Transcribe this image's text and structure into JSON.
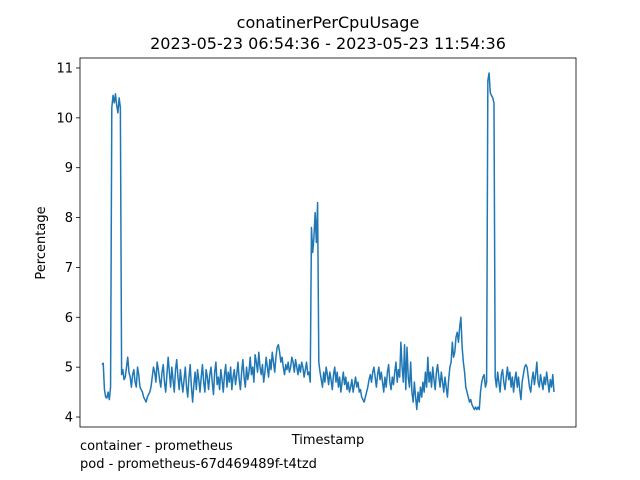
{
  "chart_data": {
    "type": "line",
    "title": "conatinerPerCpuUsage",
    "subtitle": "2023-05-23 06:54:36 - 2023-05-23 11:54:36",
    "xlabel": "Timestamp",
    "ylabel": "Percentage",
    "ylim": [
      3.8,
      11.2
    ],
    "yticks": [
      4,
      5,
      6,
      7,
      8,
      9,
      10,
      11
    ],
    "grid": false,
    "x_tick_labels": "none",
    "series": [
      {
        "color": "#1f77b4",
        "values": [
          5.05,
          5.08,
          4.55,
          4.4,
          4.38,
          4.5,
          4.35,
          4.6,
          10.2,
          10.45,
          10.3,
          10.48,
          10.25,
          10.1,
          10.4,
          10.2,
          4.85,
          4.95,
          4.75,
          4.8,
          5.0,
          5.2,
          4.9,
          4.8,
          4.6,
          4.85,
          4.95,
          4.7,
          4.6,
          5.0,
          4.85,
          4.6,
          4.55,
          4.5,
          4.4,
          4.35,
          4.3,
          4.4,
          4.45,
          4.5,
          4.6,
          4.8,
          5.0,
          4.9,
          4.7,
          5.1,
          4.95,
          4.75,
          4.6,
          4.9,
          5.05,
          4.7,
          4.5,
          4.85,
          5.2,
          4.9,
          4.6,
          5.0,
          4.75,
          4.5,
          4.95,
          5.15,
          4.8,
          4.55,
          4.95,
          4.7,
          4.5,
          4.75,
          5.0,
          4.6,
          4.4,
          4.8,
          5.05,
          4.6,
          4.3,
          4.65,
          4.9,
          4.55,
          4.95,
          4.75,
          4.5,
          4.8,
          5.05,
          4.7,
          4.5,
          4.95,
          4.8,
          4.55,
          4.85,
          5.0,
          4.7,
          4.45,
          4.9,
          5.1,
          4.65,
          4.8,
          4.55,
          4.95,
          4.75,
          4.5,
          4.85,
          5.05,
          4.6,
          4.9,
          4.7,
          5.0,
          4.55,
          4.8,
          4.95,
          4.65,
          4.85,
          5.1,
          4.75,
          4.55,
          4.9,
          5.15,
          4.8,
          4.6,
          5.0,
          4.75,
          4.9,
          5.2,
          4.85,
          5.0,
          4.7,
          5.25,
          5.1,
          4.9,
          5.3,
          5.0,
          4.85,
          5.05,
          4.7,
          4.9,
          5.2,
          5.0,
          4.8,
          5.15,
          4.95,
          5.3,
          5.1,
          4.9,
          5.2,
          5.4,
          5.45,
          5.3,
          5.1,
          5.2,
          5.0,
          4.85,
          5.05,
          4.95,
          5.1,
          4.9,
          5.0,
          5.2,
          5.1,
          4.9,
          5.15,
          5.0,
          4.85,
          5.05,
          4.9,
          5.1,
          5.0,
          4.8,
          4.95,
          5.1,
          4.85,
          4.9,
          4.7,
          7.8,
          7.3,
          7.6,
          8.1,
          7.5,
          8.3,
          5.1,
          4.9,
          4.75,
          4.6,
          4.9,
          4.7,
          5.0,
          4.85,
          4.65,
          4.9,
          4.75,
          4.55,
          4.85,
          5.0,
          4.7,
          4.9,
          4.6,
          4.8,
          4.5,
          4.7,
          4.9,
          4.65,
          4.8,
          4.55,
          4.7,
          4.5,
          4.6,
          4.75,
          4.5,
          4.65,
          4.8,
          4.6,
          4.7,
          4.5,
          4.55,
          4.4,
          4.35,
          4.3,
          4.4,
          4.5,
          4.6,
          4.75,
          4.85,
          4.7,
          4.9,
          5.0,
          4.8,
          4.6,
          4.85,
          5.0,
          4.75,
          4.9,
          4.7,
          4.5,
          4.8,
          4.6,
          4.9,
          5.05,
          4.7,
          4.55,
          4.8,
          4.65,
          4.9,
          5.1,
          4.7,
          4.95,
          4.8,
          5.5,
          5.0,
          4.7,
          5.45,
          4.55,
          5.4,
          4.8,
          4.6,
          5.1,
          4.5,
          4.3,
          4.7,
          4.4,
          4.15,
          4.5,
          4.3,
          4.6,
          4.4,
          4.7,
          4.5,
          4.9,
          4.6,
          5.2,
          4.7,
          4.9,
          4.6,
          5.0,
          4.75,
          4.55,
          4.9,
          5.05,
          4.8,
          4.6,
          4.9,
          4.7,
          4.5,
          4.8,
          4.6,
          4.4,
          4.75,
          5.0,
          5.1,
          5.5,
          5.2,
          5.3,
          5.6,
          5.7,
          5.5,
          5.8,
          6.0,
          5.4,
          5.1,
          4.9,
          4.6,
          4.5,
          4.4,
          4.3,
          4.35,
          4.25,
          4.2,
          4.15,
          4.2,
          4.15,
          4.2,
          4.15,
          4.5,
          4.7,
          4.8,
          4.85,
          4.6,
          4.7,
          10.75,
          10.9,
          10.5,
          10.45,
          10.4,
          10.3,
          4.8,
          4.6,
          4.9,
          4.7,
          4.5,
          4.85,
          4.95,
          4.7,
          4.55,
          4.8,
          5.0,
          4.75,
          4.9,
          4.6,
          4.8,
          4.5,
          4.75,
          4.9,
          4.6,
          4.8,
          4.55,
          4.35,
          4.7,
          4.85,
          5.0,
          5.05,
          5.0,
          4.8,
          4.6,
          4.5,
          4.75,
          4.9,
          4.65,
          4.85,
          5.1,
          4.7,
          4.6,
          4.85,
          4.7,
          4.55,
          4.8,
          4.65,
          4.9,
          4.7,
          4.5,
          4.75,
          4.6,
          4.85,
          4.5
        ]
      }
    ]
  },
  "footer": {
    "line1": "container - prometheus",
    "line2": "pod - prometheus-67d469489f-t4tzd"
  }
}
